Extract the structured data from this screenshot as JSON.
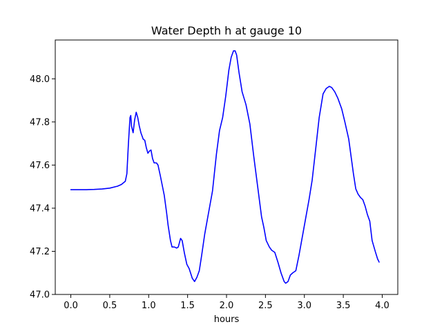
{
  "chart_data": {
    "type": "line",
    "title": "Water Depth h at gauge 10",
    "xlabel": "hours",
    "ylabel": "",
    "xlim": [
      -0.2,
      4.2
    ],
    "ylim": [
      47.0,
      48.18
    ],
    "grid": false,
    "x_ticks": [
      0.0,
      0.5,
      1.0,
      1.5,
      2.0,
      2.5,
      3.0,
      3.5,
      4.0
    ],
    "x_tick_labels": [
      "0.0",
      "0.5",
      "1.0",
      "1.5",
      "2.0",
      "2.5",
      "3.0",
      "3.5",
      "4.0"
    ],
    "y_ticks": [
      47.0,
      47.2,
      47.4,
      47.6,
      47.8,
      48.0
    ],
    "y_tick_labels": [
      "47.0",
      "47.2",
      "47.4",
      "47.6",
      "47.8",
      "48.0"
    ],
    "series": [
      {
        "color": "#0000ff",
        "points": [
          [
            0.0,
            47.486
          ],
          [
            0.1,
            47.486
          ],
          [
            0.2,
            47.486
          ],
          [
            0.3,
            47.487
          ],
          [
            0.4,
            47.489
          ],
          [
            0.5,
            47.493
          ],
          [
            0.6,
            47.502
          ],
          [
            0.65,
            47.51
          ],
          [
            0.7,
            47.525
          ],
          [
            0.72,
            47.56
          ],
          [
            0.74,
            47.7
          ],
          [
            0.76,
            47.82
          ],
          [
            0.77,
            47.83
          ],
          [
            0.78,
            47.78
          ],
          [
            0.8,
            47.75
          ],
          [
            0.82,
            47.81
          ],
          [
            0.84,
            47.845
          ],
          [
            0.86,
            47.82
          ],
          [
            0.88,
            47.78
          ],
          [
            0.9,
            47.75
          ],
          [
            0.93,
            47.72
          ],
          [
            0.95,
            47.715
          ],
          [
            0.97,
            47.68
          ],
          [
            0.99,
            47.655
          ],
          [
            1.01,
            47.665
          ],
          [
            1.03,
            47.67
          ],
          [
            1.05,
            47.63
          ],
          [
            1.07,
            47.61
          ],
          [
            1.1,
            47.61
          ],
          [
            1.12,
            47.6
          ],
          [
            1.15,
            47.55
          ],
          [
            1.2,
            47.46
          ],
          [
            1.23,
            47.38
          ],
          [
            1.25,
            47.32
          ],
          [
            1.28,
            47.25
          ],
          [
            1.3,
            47.22
          ],
          [
            1.33,
            47.22
          ],
          [
            1.36,
            47.215
          ],
          [
            1.38,
            47.22
          ],
          [
            1.41,
            47.26
          ],
          [
            1.43,
            47.25
          ],
          [
            1.46,
            47.19
          ],
          [
            1.49,
            47.14
          ],
          [
            1.52,
            47.12
          ],
          [
            1.56,
            47.075
          ],
          [
            1.59,
            47.06
          ],
          [
            1.62,
            47.08
          ],
          [
            1.65,
            47.11
          ],
          [
            1.68,
            47.18
          ],
          [
            1.72,
            47.28
          ],
          [
            1.77,
            47.38
          ],
          [
            1.82,
            47.48
          ],
          [
            1.87,
            47.65
          ],
          [
            1.91,
            47.76
          ],
          [
            1.95,
            47.82
          ],
          [
            1.99,
            47.92
          ],
          [
            2.03,
            48.04
          ],
          [
            2.06,
            48.1
          ],
          [
            2.09,
            48.13
          ],
          [
            2.11,
            48.13
          ],
          [
            2.13,
            48.11
          ],
          [
            2.16,
            48.03
          ],
          [
            2.2,
            47.94
          ],
          [
            2.25,
            47.88
          ],
          [
            2.3,
            47.79
          ],
          [
            2.35,
            47.64
          ],
          [
            2.4,
            47.5
          ],
          [
            2.45,
            47.36
          ],
          [
            2.48,
            47.31
          ],
          [
            2.51,
            47.25
          ],
          [
            2.55,
            47.22
          ],
          [
            2.58,
            47.205
          ],
          [
            2.62,
            47.195
          ],
          [
            2.66,
            47.15
          ],
          [
            2.7,
            47.1
          ],
          [
            2.74,
            47.06
          ],
          [
            2.76,
            47.052
          ],
          [
            2.79,
            47.06
          ],
          [
            2.82,
            47.09
          ],
          [
            2.85,
            47.1
          ],
          [
            2.89,
            47.11
          ],
          [
            2.93,
            47.18
          ],
          [
            2.97,
            47.26
          ],
          [
            3.01,
            47.34
          ],
          [
            3.06,
            47.44
          ],
          [
            3.1,
            47.53
          ],
          [
            3.15,
            47.69
          ],
          [
            3.19,
            47.82
          ],
          [
            3.24,
            47.93
          ],
          [
            3.28,
            47.955
          ],
          [
            3.32,
            47.965
          ],
          [
            3.35,
            47.96
          ],
          [
            3.39,
            47.94
          ],
          [
            3.43,
            47.91
          ],
          [
            3.48,
            47.86
          ],
          [
            3.52,
            47.8
          ],
          [
            3.57,
            47.72
          ],
          [
            3.6,
            47.64
          ],
          [
            3.63,
            47.56
          ],
          [
            3.66,
            47.49
          ],
          [
            3.69,
            47.465
          ],
          [
            3.72,
            47.45
          ],
          [
            3.75,
            47.44
          ],
          [
            3.78,
            47.41
          ],
          [
            3.81,
            47.37
          ],
          [
            3.84,
            47.34
          ],
          [
            3.87,
            47.25
          ],
          [
            3.91,
            47.2
          ],
          [
            3.94,
            47.165
          ],
          [
            3.96,
            47.15
          ]
        ]
      }
    ]
  }
}
